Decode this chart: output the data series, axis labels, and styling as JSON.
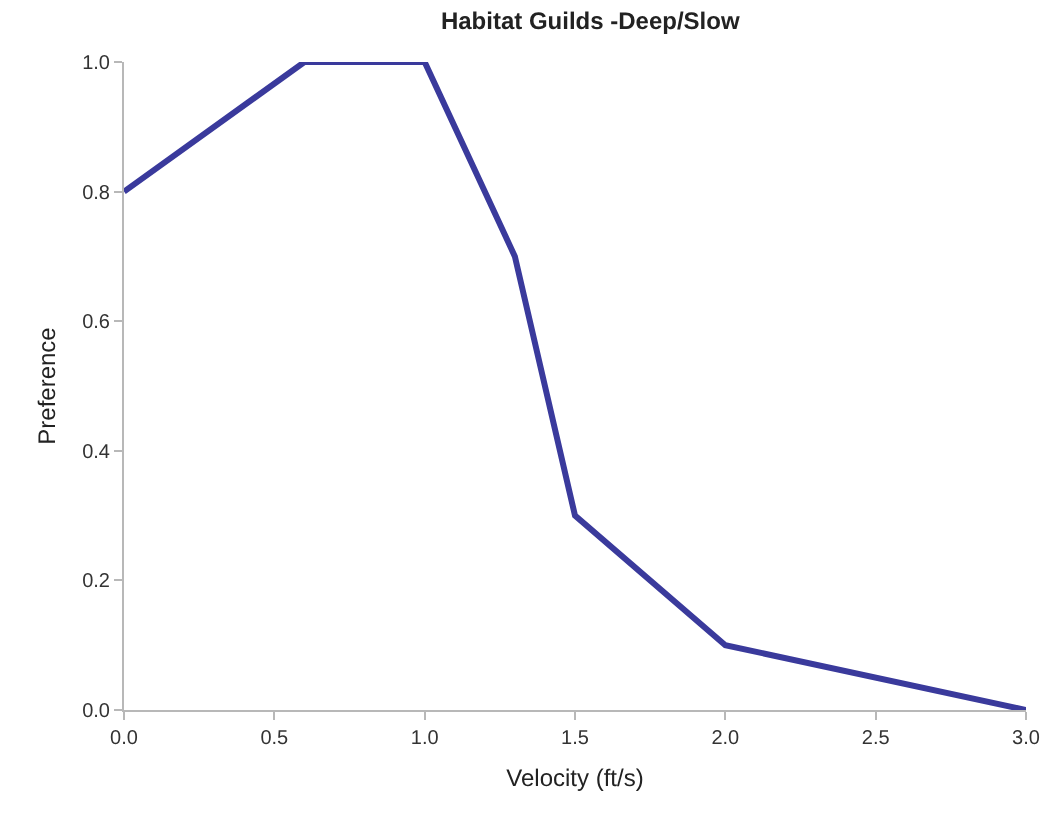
{
  "chart_data": {
    "type": "line",
    "title": "Habitat Guilds -Deep/Slow",
    "xlabel": "Velocity (ft/s)",
    "ylabel": "Preference",
    "x": [
      0,
      0.6,
      1.0,
      1.3,
      1.5,
      2.0,
      3.0
    ],
    "series": [
      {
        "color": "#3a3a9c",
        "values": [
          0.8,
          1.0,
          1.0,
          0.7,
          0.3,
          0.1,
          0.0
        ]
      }
    ],
    "xlim": [
      0,
      3
    ],
    "xticks": [
      {
        "value": 0,
        "label": "0.0"
      },
      {
        "value": 0.5,
        "label": "0.5"
      },
      {
        "value": 1,
        "label": "1.0"
      },
      {
        "value": 1.5,
        "label": "1.5"
      },
      {
        "value": 2,
        "label": "2.0"
      },
      {
        "value": 2.5,
        "label": "2.5"
      },
      {
        "value": 3,
        "label": "3.0"
      }
    ],
    "ylim": [
      0,
      1
    ],
    "yticks": [
      {
        "value": 0,
        "label": "0.0"
      },
      {
        "value": 0.2,
        "label": "0.2"
      },
      {
        "value": 0.4,
        "label": "0.4"
      },
      {
        "value": 0.6,
        "label": "0.6"
      },
      {
        "value": 0.8,
        "label": "0.8"
      },
      {
        "value": 1,
        "label": "1.0"
      }
    ],
    "grid": false,
    "marker": "none",
    "line_style": "solid"
  }
}
